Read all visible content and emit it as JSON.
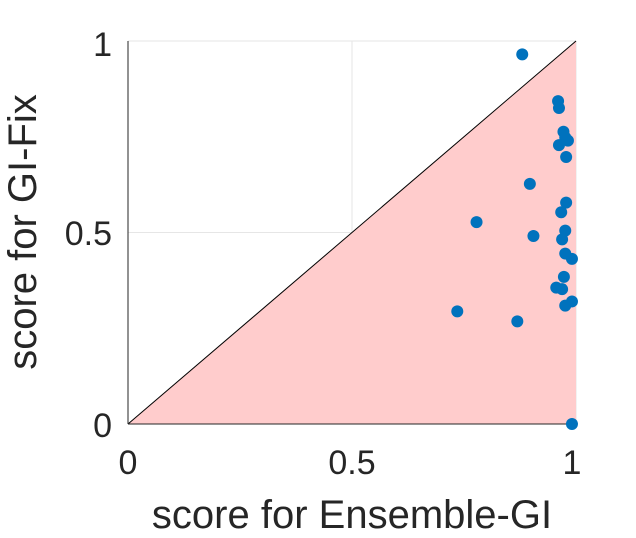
{
  "chart_data": {
    "type": "scatter",
    "title": "",
    "xlabel": "score for Ensemble-GI",
    "ylabel": "score for GI-Fix",
    "xlim": [
      0,
      1
    ],
    "ylim": [
      0,
      1
    ],
    "xticks": [
      "0",
      "0.5",
      "1"
    ],
    "yticks": [
      "0",
      "0.5",
      "1"
    ],
    "grid": true,
    "legend": "none",
    "colors": {
      "points": "#0072BD",
      "region": "#FFCCCC",
      "diagonal": "#000000",
      "grid": "#E6E6E6"
    },
    "region": "below diagonal y = x shaded",
    "points": [
      {
        "x": 0.88,
        "y": 0.965
      },
      {
        "x": 0.96,
        "y": 0.843
      },
      {
        "x": 0.962,
        "y": 0.825
      },
      {
        "x": 0.972,
        "y": 0.763
      },
      {
        "x": 0.976,
        "y": 0.748
      },
      {
        "x": 0.962,
        "y": 0.728
      },
      {
        "x": 0.982,
        "y": 0.74
      },
      {
        "x": 0.978,
        "y": 0.697
      },
      {
        "x": 0.897,
        "y": 0.627
      },
      {
        "x": 0.978,
        "y": 0.578
      },
      {
        "x": 0.967,
        "y": 0.553
      },
      {
        "x": 0.778,
        "y": 0.527
      },
      {
        "x": 0.976,
        "y": 0.505
      },
      {
        "x": 0.905,
        "y": 0.491
      },
      {
        "x": 0.969,
        "y": 0.482
      },
      {
        "x": 0.976,
        "y": 0.445
      },
      {
        "x": 0.991,
        "y": 0.431
      },
      {
        "x": 0.973,
        "y": 0.384
      },
      {
        "x": 0.956,
        "y": 0.356
      },
      {
        "x": 0.969,
        "y": 0.352
      },
      {
        "x": 0.991,
        "y": 0.32
      },
      {
        "x": 0.976,
        "y": 0.309
      },
      {
        "x": 0.735,
        "y": 0.294
      },
      {
        "x": 0.869,
        "y": 0.268
      },
      {
        "x": 0.991,
        "y": 0.0
      }
    ]
  }
}
